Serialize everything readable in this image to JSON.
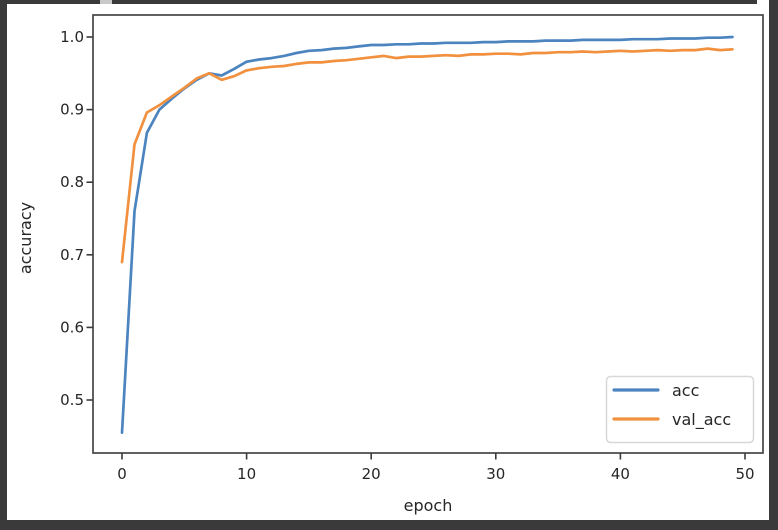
{
  "frame": {
    "background": "#ffffff",
    "border_color": "#3a3a3a",
    "tab_color": "#c9c9c9"
  },
  "chart_data": {
    "type": "line",
    "title": "",
    "xlabel": "epoch",
    "ylabel": "accuracy",
    "grid": false,
    "legend_position": "lower right",
    "xlim": [
      -2.45,
      51.45
    ],
    "ylim": [
      0.427,
      1.03
    ],
    "xticks": [
      0,
      10,
      20,
      30,
      40,
      50
    ],
    "yticks": [
      0.5,
      0.6,
      0.7,
      0.8,
      0.9,
      1.0
    ],
    "x": [
      0,
      1,
      2,
      3,
      4,
      5,
      6,
      7,
      8,
      9,
      10,
      11,
      12,
      13,
      14,
      15,
      16,
      17,
      18,
      19,
      20,
      21,
      22,
      23,
      24,
      25,
      26,
      27,
      28,
      29,
      30,
      31,
      32,
      33,
      34,
      35,
      36,
      37,
      38,
      39,
      40,
      41,
      42,
      43,
      44,
      45,
      46,
      47,
      48,
      49
    ],
    "series": [
      {
        "name": "acc",
        "color": "#4c84bf",
        "values": [
          0.455,
          0.76,
          0.868,
          0.9,
          0.915,
          0.929,
          0.941,
          0.95,
          0.947,
          0.956,
          0.966,
          0.969,
          0.971,
          0.974,
          0.978,
          0.981,
          0.982,
          0.984,
          0.985,
          0.987,
          0.989,
          0.989,
          0.99,
          0.99,
          0.991,
          0.991,
          0.992,
          0.992,
          0.992,
          0.993,
          0.993,
          0.994,
          0.994,
          0.994,
          0.995,
          0.995,
          0.995,
          0.996,
          0.996,
          0.996,
          0.996,
          0.997,
          0.997,
          0.997,
          0.998,
          0.998,
          0.998,
          0.999,
          0.999,
          1.0
        ]
      },
      {
        "name": "val_acc",
        "color": "#f1913f",
        "values": [
          0.69,
          0.852,
          0.896,
          0.906,
          0.918,
          0.93,
          0.943,
          0.95,
          0.941,
          0.946,
          0.954,
          0.957,
          0.959,
          0.96,
          0.963,
          0.965,
          0.965,
          0.967,
          0.968,
          0.97,
          0.972,
          0.974,
          0.971,
          0.973,
          0.973,
          0.974,
          0.975,
          0.974,
          0.976,
          0.976,
          0.977,
          0.977,
          0.976,
          0.978,
          0.978,
          0.979,
          0.979,
          0.98,
          0.979,
          0.98,
          0.981,
          0.98,
          0.981,
          0.982,
          0.981,
          0.982,
          0.982,
          0.984,
          0.982,
          0.983
        ]
      }
    ]
  }
}
